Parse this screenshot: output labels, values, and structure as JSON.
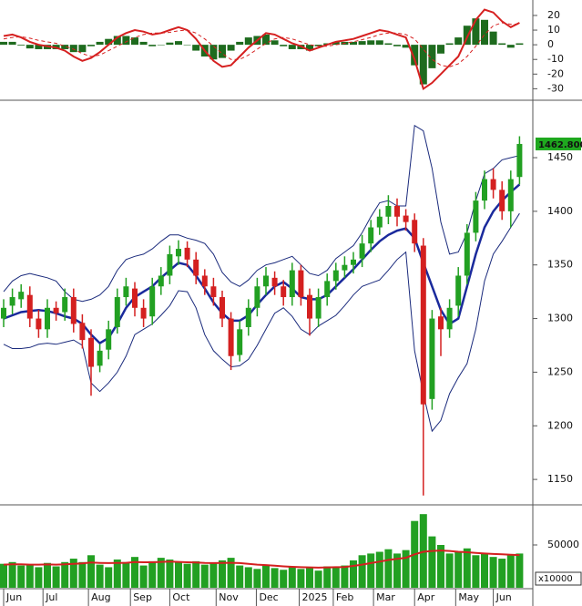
{
  "chart_data": [
    {
      "type": "macd",
      "ylim": [
        -36.6,
        29.3
      ],
      "yticks": [
        20,
        10,
        0,
        -10,
        -20,
        -30
      ],
      "histogram": {
        "color": "#1e6b1e",
        "values": [
          2,
          2,
          -0.5,
          -2.5,
          -3,
          -3,
          -3,
          -3,
          -5,
          -5,
          -1,
          2,
          4,
          6,
          6,
          5,
          2,
          -1,
          0,
          1.5,
          2.5,
          0,
          -4,
          -8,
          -10,
          -9,
          -4,
          2,
          5,
          6,
          7,
          3,
          -1,
          -3,
          -3,
          -4,
          -1,
          1,
          2,
          2,
          2,
          2.5,
          3,
          3,
          1,
          -1,
          -2,
          -14,
          -27,
          -16,
          -6,
          1,
          5,
          13,
          18,
          17,
          9,
          1,
          -2,
          1
        ]
      },
      "series": [
        {
          "color": "#d62020",
          "width": 2,
          "values": [
            6,
            7,
            5,
            2,
            0,
            -1,
            -2,
            -4,
            -8,
            -11,
            -9,
            -5,
            0,
            5,
            8,
            10,
            9,
            7,
            8,
            10,
            12,
            10,
            4,
            -4,
            -11,
            -15,
            -14,
            -8,
            -2,
            3,
            8,
            7,
            4,
            1,
            -1,
            -4,
            -2,
            0,
            2,
            3,
            4,
            6,
            8,
            10,
            9,
            7,
            5,
            -10,
            -30,
            -26,
            -20,
            -14,
            -8,
            5,
            17,
            24,
            22,
            16,
            12,
            15
          ]
        },
        {
          "color": "#d62020",
          "width": 1,
          "dashed": true,
          "values": [
            4,
            5,
            5.5,
            4.5,
            3,
            2,
            1,
            -1,
            -3,
            -6,
            -8,
            -7,
            -4,
            -1,
            2,
            5,
            7,
            8,
            8,
            8.5,
            9.5,
            10,
            8,
            4,
            -1,
            -6,
            -10,
            -10,
            -7,
            -3,
            1,
            4,
            5,
            4,
            2,
            0,
            -1,
            -1,
            0,
            1,
            2,
            3.5,
            5,
            7,
            8,
            8,
            7,
            4,
            -3,
            -10,
            -14,
            -15,
            -13,
            -8,
            -1,
            7,
            13,
            15,
            14,
            14
          ]
        }
      ]
    },
    {
      "type": "candlestick",
      "ylim": [
        1128,
        1501
      ],
      "yticks": [
        1150,
        1200,
        1250,
        1300,
        1350,
        1400,
        1450
      ],
      "up_color": "#22a022",
      "down_color": "#d42020",
      "open": [
        1300,
        1312,
        1318,
        1322,
        1300,
        1290,
        1310,
        1306,
        1320,
        1296,
        1282,
        1256,
        1271,
        1292,
        1320,
        1328,
        1310,
        1302,
        1330,
        1340,
        1358,
        1366,
        1355,
        1340,
        1330,
        1320,
        1300,
        1266,
        1292,
        1310,
        1330,
        1338,
        1330,
        1320,
        1345,
        1322,
        1300,
        1320,
        1335,
        1345,
        1350,
        1356,
        1370,
        1385,
        1395,
        1405,
        1396,
        1392,
        1368,
        1225,
        1302,
        1290,
        1312,
        1340,
        1380,
        1410,
        1430,
        1420,
        1400,
        1432
      ],
      "high": [
        1318,
        1328,
        1332,
        1330,
        1308,
        1318,
        1316,
        1328,
        1328,
        1304,
        1290,
        1276,
        1298,
        1328,
        1338,
        1334,
        1318,
        1338,
        1348,
        1368,
        1373,
        1372,
        1362,
        1346,
        1338,
        1326,
        1306,
        1298,
        1318,
        1338,
        1348,
        1344,
        1336,
        1352,
        1350,
        1328,
        1328,
        1342,
        1352,
        1358,
        1362,
        1378,
        1392,
        1402,
        1415,
        1412,
        1402,
        1398,
        1375,
        1308,
        1310,
        1318,
        1348,
        1388,
        1418,
        1438,
        1440,
        1428,
        1438,
        1470
      ],
      "low": [
        1292,
        1304,
        1310,
        1292,
        1282,
        1282,
        1298,
        1298,
        1287,
        1272,
        1228,
        1250,
        1262,
        1286,
        1312,
        1302,
        1292,
        1294,
        1322,
        1332,
        1350,
        1348,
        1332,
        1322,
        1312,
        1292,
        1252,
        1260,
        1284,
        1302,
        1322,
        1322,
        1312,
        1312,
        1312,
        1284,
        1292,
        1312,
        1327,
        1338,
        1342,
        1348,
        1362,
        1378,
        1388,
        1386,
        1382,
        1362,
        1135,
        1215,
        1265,
        1282,
        1302,
        1332,
        1372,
        1402,
        1412,
        1392,
        1385,
        1425
      ],
      "close": [
        1310,
        1320,
        1325,
        1300,
        1290,
        1310,
        1305,
        1320,
        1295,
        1280,
        1255,
        1270,
        1290,
        1320,
        1330,
        1310,
        1300,
        1330,
        1340,
        1360,
        1365,
        1355,
        1340,
        1330,
        1320,
        1300,
        1265,
        1290,
        1310,
        1330,
        1340,
        1330,
        1320,
        1345,
        1320,
        1300,
        1320,
        1335,
        1345,
        1350,
        1355,
        1370,
        1385,
        1395,
        1405,
        1395,
        1390,
        1370,
        1220,
        1300,
        1290,
        1310,
        1340,
        1380,
        1410,
        1430,
        1420,
        1400,
        1430,
        1462.8
      ],
      "last_label": "1462.800",
      "last_label_color": "#1fa81f",
      "series": [
        {
          "color": "#1a2a9c",
          "width": 2.5,
          "values": [
            1300,
            1303,
            1306,
            1307,
            1308,
            1307,
            1305,
            1302,
            1300,
            1295,
            1285,
            1277,
            1282,
            1295,
            1310,
            1320,
            1325,
            1330,
            1338,
            1345,
            1352,
            1350,
            1340,
            1328,
            1315,
            1305,
            1298,
            1298,
            1303,
            1313,
            1322,
            1330,
            1334,
            1328,
            1320,
            1318,
            1318,
            1322,
            1330,
            1338,
            1346,
            1355,
            1364,
            1372,
            1378,
            1382,
            1384,
            1375,
            1352,
            1330,
            1308,
            1295,
            1300,
            1330,
            1360,
            1385,
            1400,
            1410,
            1418,
            1425
          ]
        },
        {
          "color": "#1a2a7c",
          "width": 1,
          "values": [
            1325,
            1335,
            1340,
            1342,
            1340,
            1338,
            1335,
            1325,
            1318,
            1316,
            1318,
            1322,
            1330,
            1345,
            1355,
            1358,
            1360,
            1365,
            1372,
            1378,
            1378,
            1375,
            1373,
            1370,
            1360,
            1343,
            1334,
            1330,
            1336,
            1345,
            1350,
            1352,
            1355,
            1358,
            1350,
            1342,
            1340,
            1345,
            1356,
            1362,
            1368,
            1380,
            1395,
            1408,
            1410,
            1405,
            1405,
            1480,
            1475,
            1440,
            1390,
            1360,
            1362,
            1380,
            1410,
            1435,
            1440,
            1448,
            1450,
            1452
          ]
        },
        {
          "color": "#1a2a7c",
          "width": 1,
          "values": [
            1276,
            1272,
            1272,
            1273,
            1276,
            1277,
            1276,
            1278,
            1280,
            1275,
            1240,
            1232,
            1240,
            1250,
            1265,
            1285,
            1290,
            1295,
            1303,
            1312,
            1326,
            1325,
            1310,
            1285,
            1270,
            1262,
            1255,
            1256,
            1262,
            1275,
            1290,
            1305,
            1310,
            1302,
            1290,
            1285,
            1293,
            1298,
            1303,
            1312,
            1322,
            1330,
            1333,
            1336,
            1345,
            1355,
            1362,
            1270,
            1230,
            1195,
            1205,
            1230,
            1245,
            1258,
            1290,
            1335,
            1360,
            1372,
            1385,
            1398
          ]
        }
      ]
    },
    {
      "type": "bar",
      "ylim": [
        0,
        94700
      ],
      "yticks": [
        50000
      ],
      "unit_note": "x10000",
      "color": "#22a022",
      "values": [
        28000,
        30000,
        26000,
        27000,
        24000,
        29000,
        25000,
        30000,
        34000,
        30000,
        38000,
        27000,
        24000,
        33000,
        30000,
        36000,
        26000,
        31000,
        35000,
        33000,
        30000,
        28000,
        31000,
        27000,
        29000,
        32000,
        35000,
        26000,
        24000,
        22000,
        27000,
        23000,
        21000,
        24000,
        22000,
        23000,
        20000,
        25000,
        24000,
        26000,
        32000,
        38000,
        40000,
        42000,
        45000,
        40000,
        44000,
        78000,
        86000,
        60000,
        50000,
        40000,
        42000,
        46000,
        38000,
        40000,
        36000,
        34000,
        38000,
        40000
      ],
      "series": [
        {
          "color": "#d42020",
          "width": 2,
          "values": [
            27000,
            27500,
            27500,
            27000,
            27000,
            27200,
            27000,
            27300,
            28000,
            28500,
            29500,
            29000,
            28800,
            29000,
            29200,
            30000,
            29800,
            29800,
            30200,
            30500,
            30200,
            29800,
            29600,
            29000,
            28800,
            28900,
            29200,
            28800,
            28000,
            27000,
            26500,
            25800,
            25000,
            24500,
            24000,
            23800,
            23500,
            23800,
            24000,
            24300,
            25500,
            27000,
            28800,
            30500,
            32500,
            33800,
            35000,
            39000,
            42000,
            43000,
            43500,
            43000,
            42000,
            41500,
            40800,
            40000,
            39500,
            39000,
            38500,
            38200
          ]
        }
      ],
      "xticks": [
        {
          "value": 0,
          "label": "Jun"
        },
        {
          "value": 4.5,
          "label": "Jul"
        },
        {
          "value": 9.7,
          "label": "Aug"
        },
        {
          "value": 14.5,
          "label": "Sep"
        },
        {
          "value": 19,
          "label": "Oct"
        },
        {
          "value": 24.3,
          "label": "Nov"
        },
        {
          "value": 28.9,
          "label": "Dec"
        },
        {
          "value": 33.8,
          "label": "2025"
        },
        {
          "value": 37.7,
          "label": "Feb"
        },
        {
          "value": 42.3,
          "label": "Mar"
        },
        {
          "value": 47,
          "label": "Apr"
        },
        {
          "value": 51.7,
          "label": "May"
        },
        {
          "value": 56,
          "label": "Jun"
        }
      ]
    }
  ]
}
